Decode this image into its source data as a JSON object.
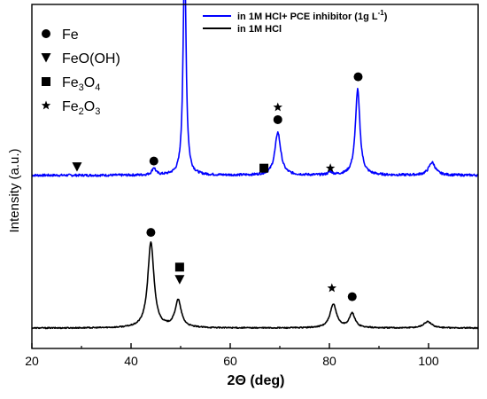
{
  "chart_data": {
    "type": "line",
    "xlabel": "2Θ (deg)",
    "ylabel": "Intensity (a.u.)",
    "xlim": [
      20,
      110
    ],
    "xticks": [
      20,
      40,
      60,
      80,
      100
    ],
    "x_minor_step": 10,
    "yticks_shown": false,
    "legend_position": "top-right",
    "marker_legend_position": "top-left",
    "series": [
      {
        "name": "in 1M HCl+ PCE inhibitor (1g L",
        "name_sup": "-1",
        "name_end": ")",
        "color": "#0000ff",
        "baseline": 0.535,
        "noise": 0.004,
        "peaks": [
          {
            "x": 44.6,
            "height": 0.025,
            "width": 0.45
          },
          {
            "x": 50.8,
            "height": 0.79,
            "width": 0.35
          },
          {
            "x": 69.6,
            "height": 0.15,
            "width": 0.7
          },
          {
            "x": 80.2,
            "height": 0.01,
            "width": 0.5
          },
          {
            "x": 85.7,
            "height": 0.3,
            "width": 0.55
          },
          {
            "x": 100.7,
            "height": 0.045,
            "width": 0.8
          }
        ]
      },
      {
        "name": "in 1M HCl",
        "color": "#000000",
        "baseline": 0.0,
        "noise": 0.002,
        "peaks": [
          {
            "x": 44.0,
            "height": 0.3,
            "width": 0.75
          },
          {
            "x": 49.5,
            "height": 0.095,
            "width": 0.75
          },
          {
            "x": 80.8,
            "height": 0.082,
            "width": 0.8
          },
          {
            "x": 84.6,
            "height": 0.05,
            "width": 0.7
          },
          {
            "x": 99.8,
            "height": 0.022,
            "width": 1.0
          }
        ]
      }
    ],
    "phase_legend": [
      {
        "symbol": "circle",
        "label": "Fe"
      },
      {
        "symbol": "triangle-down",
        "label": "FeO(OH)"
      },
      {
        "symbol": "square",
        "label": "Fe",
        "sub": "3",
        "label2": "O",
        "sub2": "4"
      },
      {
        "symbol": "star",
        "label": "Fe",
        "sub": "2",
        "label2": "O",
        "sub2": "3"
      }
    ],
    "peak_markers": [
      {
        "x": 29.1,
        "level": 0.565,
        "symbols": [
          "triangle-down"
        ]
      },
      {
        "x": 44.6,
        "level": 0.585,
        "symbols": [
          "circle"
        ]
      },
      {
        "x": 50.8,
        "level": 1.365,
        "symbols": [
          "triangle-down",
          "square"
        ]
      },
      {
        "x": 66.8,
        "level": 0.56,
        "symbols": [
          "square"
        ]
      },
      {
        "x": 69.6,
        "level": 0.73,
        "symbols": [
          "circle",
          "star"
        ]
      },
      {
        "x": 80.2,
        "level": 0.56,
        "symbols": [
          "star"
        ]
      },
      {
        "x": 85.8,
        "level": 0.88,
        "symbols": [
          "circle"
        ]
      },
      {
        "x": 44.0,
        "level": 0.335,
        "symbols": [
          "circle"
        ]
      },
      {
        "x": 49.8,
        "level": 0.17,
        "symbols": [
          "triangle-down",
          "square"
        ]
      },
      {
        "x": 80.5,
        "level": 0.14,
        "symbols": [
          "star"
        ]
      },
      {
        "x": 84.6,
        "level": 0.11,
        "symbols": [
          "circle"
        ]
      }
    ]
  }
}
